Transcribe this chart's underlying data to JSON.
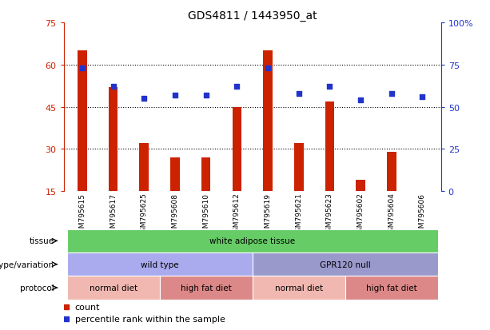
{
  "title": "GDS4811 / 1443950_at",
  "samples": [
    "GSM795615",
    "GSM795617",
    "GSM795625",
    "GSM795608",
    "GSM795610",
    "GSM795612",
    "GSM795619",
    "GSM795621",
    "GSM795623",
    "GSM795602",
    "GSM795604",
    "GSM795606"
  ],
  "counts": [
    65,
    52,
    32,
    27,
    27,
    45,
    65,
    32,
    47,
    19,
    29,
    12
  ],
  "percentile_ranks": [
    73,
    62,
    55,
    57,
    57,
    62,
    73,
    58,
    62,
    54,
    58,
    56
  ],
  "ylim_left": [
    15,
    75
  ],
  "ylim_right": [
    0,
    100
  ],
  "yticks_left": [
    15,
    30,
    45,
    60,
    75
  ],
  "yticks_right": [
    0,
    25,
    50,
    75,
    100
  ],
  "bar_color": "#cc2200",
  "dot_color": "#2233cc",
  "tissue_label": "tissue",
  "tissue_text": "white adipose tissue",
  "tissue_color": "#66cc66",
  "genotype_label": "genotype/variation",
  "genotype_groups": [
    {
      "text": "wild type",
      "color": "#aaaaee",
      "span": [
        0,
        6
      ]
    },
    {
      "text": "GPR120 null",
      "color": "#9999cc",
      "span": [
        6,
        12
      ]
    }
  ],
  "protocol_label": "protocol",
  "protocol_groups": [
    {
      "text": "normal diet",
      "color": "#f0b8b0",
      "span": [
        0,
        3
      ]
    },
    {
      "text": "high fat diet",
      "color": "#dd8888",
      "span": [
        3,
        6
      ]
    },
    {
      "text": "normal diet",
      "color": "#f0b8b0",
      "span": [
        6,
        9
      ]
    },
    {
      "text": "high fat diet",
      "color": "#dd8888",
      "span": [
        9,
        12
      ]
    }
  ],
  "legend_count_color": "#cc2200",
  "legend_pct_color": "#2233cc",
  "xtick_bg": "#dddddd",
  "bar_width": 0.3
}
